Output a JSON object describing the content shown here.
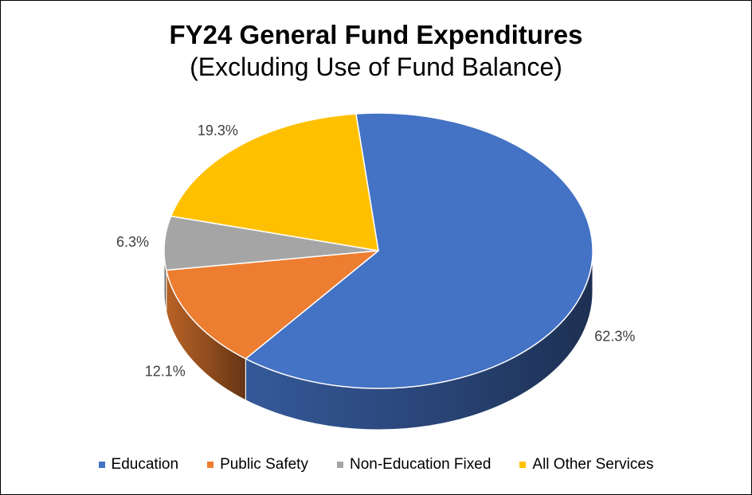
{
  "chart_data": {
    "type": "pie",
    "title": "FY24 General Fund Expenditures",
    "subtitle": "(Excluding Use of Fund Balance)",
    "categories": [
      "Education",
      "Public Safety",
      "Non-Education Fixed",
      "All Other Services"
    ],
    "values": [
      62.3,
      12.1,
      6.3,
      19.3
    ],
    "labels": [
      "62.3%",
      "12.1%",
      "6.3%",
      "19.3%"
    ],
    "colors": [
      "#4472C4",
      "#ED7D31",
      "#A5A5A5",
      "#FFC000"
    ],
    "legend_position": "bottom",
    "style": "3d"
  }
}
